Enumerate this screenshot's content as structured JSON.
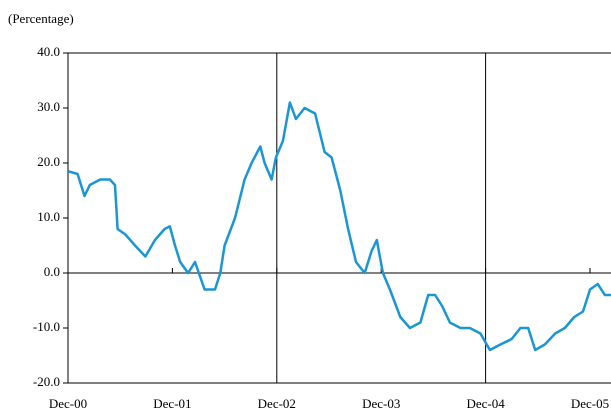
{
  "chart_data": {
    "type": "line",
    "y_label": "(Percentage)",
    "x": [
      0,
      1.1,
      1.9,
      2.5,
      3.7,
      4.8,
      5.4,
      5.7,
      6.6,
      7.7,
      8.9,
      10.0,
      11.1,
      11.7,
      12.3,
      12.9,
      13.8,
      14.6,
      15.7,
      16.9,
      17.5,
      18.0,
      19.2,
      20.3,
      21.1,
      22.1,
      22.6,
      23.4,
      23.9,
      24.7,
      25.5,
      26.2,
      27.2,
      28.4,
      29.5,
      30.3,
      31.3,
      32.2,
      33.1,
      34.1,
      34.9,
      35.5,
      36.2,
      37.0,
      38.2,
      39.3,
      40.5,
      41.4,
      42.2,
      43.0,
      43.9,
      45.1,
      46.2,
      47.4,
      48.5,
      49.7,
      51.0,
      52.0,
      52.9,
      53.7,
      54.8,
      56.0,
      57.1,
      58.2,
      59.2,
      60.0,
      60.9,
      61.7,
      62.4
    ],
    "series": [
      {
        "name": "Percentage",
        "color": "#1a96d4",
        "values": [
          18.5,
          18,
          14,
          16,
          17,
          17,
          16,
          8,
          7,
          5,
          3,
          6,
          8,
          8.5,
          5,
          2,
          0,
          2,
          -3,
          -3,
          0,
          5,
          10,
          17,
          20,
          23,
          20,
          17,
          21,
          24,
          31,
          28,
          30,
          29,
          22,
          21,
          15,
          8,
          2,
          0,
          4,
          6,
          0,
          -3,
          -8,
          -10,
          -9,
          -4,
          -4,
          -6,
          -9,
          -10,
          -10,
          -11,
          -14,
          -13,
          -12,
          -10,
          -10,
          -14,
          -13,
          -11,
          -10,
          -8,
          -7,
          -3,
          -2,
          -4,
          -4
        ]
      }
    ],
    "xlim": [
      0,
      62.4
    ],
    "xticks": [
      {
        "value": 0,
        "label": "Dec-00"
      },
      {
        "value": 12,
        "label": "Dec-01"
      },
      {
        "value": 24,
        "label": "Dec-02"
      },
      {
        "value": 36,
        "label": "Dec-03"
      },
      {
        "value": 48,
        "label": "Dec-04"
      },
      {
        "value": 60,
        "label": "Dec-05"
      }
    ],
    "vlines": [
      24,
      48
    ],
    "ylim": [
      -20,
      40
    ],
    "yticks": [
      {
        "value": -20,
        "label": "-20.0"
      },
      {
        "value": -10,
        "label": "-10.0"
      },
      {
        "value": 0,
        "label": "0.0"
      },
      {
        "value": 10,
        "label": "10.0"
      },
      {
        "value": 20,
        "label": "20.0"
      },
      {
        "value": 30,
        "label": "30.0"
      },
      {
        "value": 40,
        "label": "40.0"
      }
    ]
  }
}
